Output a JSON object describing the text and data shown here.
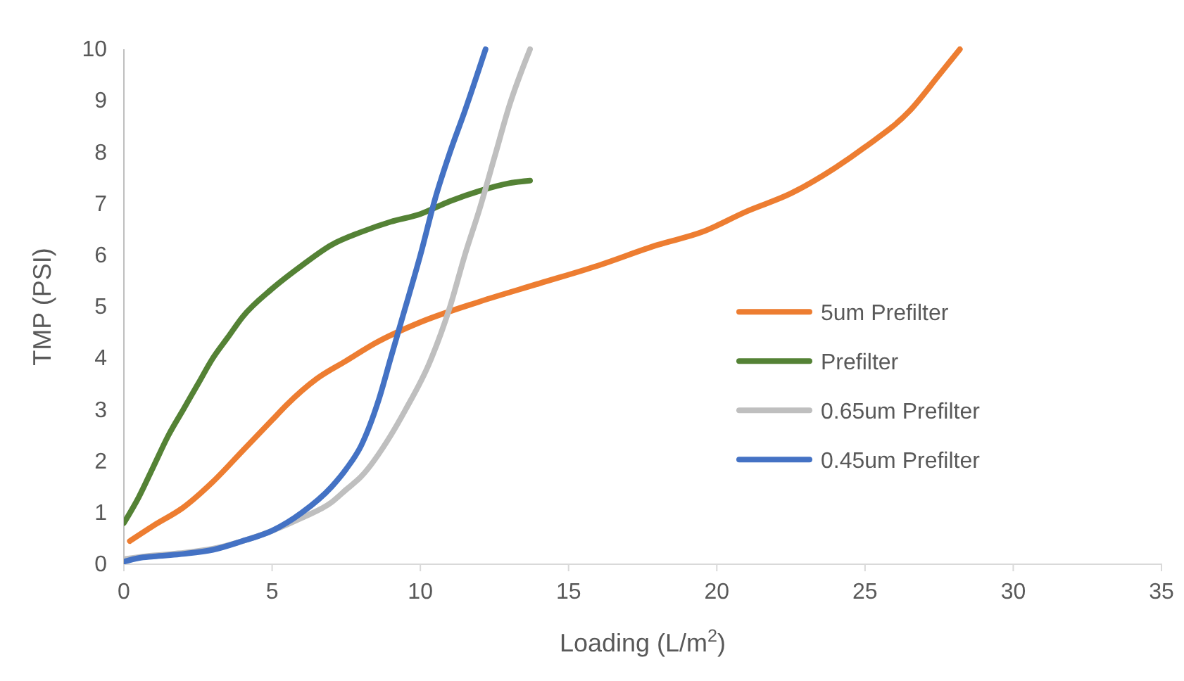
{
  "chart_data": {
    "type": "line",
    "xlabel": "Loading (L/m$^{2}$)",
    "ylabel": "TMP (PSI)",
    "xlim": [
      0,
      35
    ],
    "xticks": [
      0,
      5,
      10,
      15,
      20,
      25,
      30,
      35
    ],
    "ylim": [
      0,
      10
    ],
    "yticks": [
      0,
      1,
      2,
      3,
      4,
      5,
      6,
      7,
      8,
      9,
      10
    ],
    "grid": false,
    "legend": "right",
    "marker": "none",
    "line_style": "solid",
    "series": [
      {
        "name": "5um Prefilter",
        "color": "#ed7d31",
        "x": [
          0.2,
          1,
          2,
          3,
          4,
          5,
          5.5,
          6.5,
          7.5,
          8.5,
          10,
          12,
          14,
          16,
          18,
          19.5,
          21,
          22.5,
          24,
          25,
          26.5,
          27.5,
          28.2
        ],
        "values": [
          0.45,
          0.75,
          1.1,
          1.6,
          2.2,
          2.8,
          3.1,
          3.6,
          3.95,
          4.3,
          4.7,
          5.1,
          5.45,
          5.8,
          6.2,
          6.45,
          6.85,
          7.2,
          7.7,
          8.1,
          8.8,
          9.5,
          10
        ]
      },
      {
        "name": "Prefilter",
        "color": "#548235",
        "x": [
          0,
          0.5,
          1,
          1.5,
          2,
          2.5,
          3,
          3.5,
          4,
          5,
          6,
          7,
          8,
          9,
          10,
          11,
          12,
          13,
          13.7
        ],
        "values": [
          0.8,
          1.3,
          1.9,
          2.5,
          3.0,
          3.5,
          4.0,
          4.4,
          4.8,
          5.35,
          5.8,
          6.2,
          6.45,
          6.65,
          6.8,
          7.05,
          7.25,
          7.4,
          7.45
        ]
      },
      {
        "name": "0.65um Prefilter",
        "color": "#bfbfbf",
        "x": [
          0,
          1,
          2,
          3,
          4,
          5,
          6,
          7,
          7.5,
          8,
          9,
          9.5,
          10.3,
          11,
          11.5,
          12,
          12.5,
          13,
          13.7
        ],
        "values": [
          0.1,
          0.17,
          0.22,
          0.3,
          0.45,
          0.65,
          0.9,
          1.2,
          1.45,
          1.7,
          2.5,
          3.0,
          3.9,
          5.0,
          6.0,
          6.9,
          7.9,
          8.9,
          10
        ]
      },
      {
        "name": "0.45um Prefilter",
        "color": "#4472c4",
        "x": [
          0,
          0.5,
          1,
          2,
          3,
          4,
          5,
          6,
          7,
          7.5,
          8,
          8.6,
          9,
          9.4,
          10,
          10.5,
          11,
          11.5,
          12.2
        ],
        "values": [
          0.05,
          0.12,
          0.15,
          0.2,
          0.28,
          0.45,
          0.65,
          1.0,
          1.5,
          1.85,
          2.3,
          3.2,
          4.0,
          4.8,
          6.0,
          7.1,
          8.0,
          8.8,
          10
        ]
      }
    ]
  }
}
